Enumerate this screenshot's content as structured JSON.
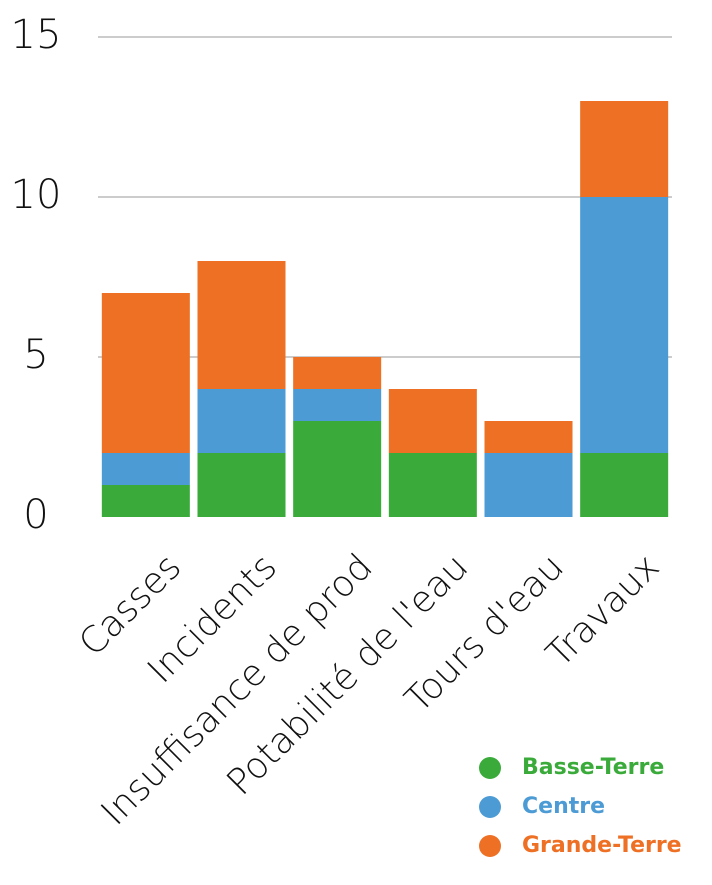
{
  "chart_data": {
    "type": "stacked_bar",
    "categories": [
      "Casses",
      "Incidents",
      "Insuffisance de prod",
      "Potabilité de l'eau",
      "Tours d'eau",
      "Travaux"
    ],
    "series": [
      {
        "name": "Basse-Terre",
        "color": "#3aab3a",
        "values": [
          1,
          2,
          3,
          2,
          0,
          2
        ]
      },
      {
        "name": "Centre",
        "color": "#4d9bd5",
        "values": [
          1,
          2,
          1,
          0,
          2,
          8
        ]
      },
      {
        "name": "Grande-Terre",
        "color": "#ee7024",
        "values": [
          5,
          4,
          1,
          2,
          1,
          3
        ]
      }
    ],
    "ylim": [
      0,
      15
    ],
    "yticks": [
      0,
      5,
      10,
      15
    ],
    "grid": true,
    "legend": "bottom-right"
  }
}
